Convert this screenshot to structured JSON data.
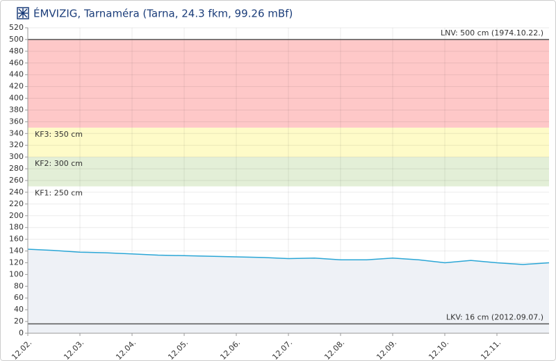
{
  "chart_data": {
    "type": "line",
    "title": "ÉMVIZIG, Tarnaméra (Tarna, 24.3 fkm, 99.26 mBf)",
    "categories": [
      "12.02.",
      null,
      "12.03.",
      null,
      "12.04.",
      null,
      "12.05.",
      null,
      "12.06.",
      null,
      "12.07.",
      null,
      "12.08.",
      null,
      "12.09.",
      null,
      "12.10.",
      null,
      "12.11.",
      null,
      null
    ],
    "series": [
      {
        "color": "#2aa6d6",
        "values": [
          143,
          141,
          138,
          137,
          135,
          133,
          132,
          131,
          130,
          129,
          127,
          128,
          125,
          125,
          128,
          125,
          120,
          124,
          120,
          117,
          120
        ]
      }
    ],
    "area_color": "#eef1f6",
    "ylim": [
      0,
      520
    ],
    "yticks": [
      0,
      20,
      40,
      60,
      80,
      100,
      120,
      140,
      160,
      180,
      200,
      220,
      240,
      260,
      280,
      300,
      320,
      340,
      360,
      380,
      400,
      420,
      440,
      460,
      480,
      500,
      520
    ],
    "grid": true,
    "bands": [
      {
        "value": 250,
        "label": "KF1: 250 cm",
        "color": "#e3efd7"
      },
      {
        "value": 300,
        "label": "KF2: 300 cm",
        "color": "#fefbc8"
      },
      {
        "value": 350,
        "label": "KF3: 350 cm",
        "color": "#fec8c8"
      }
    ],
    "reference_lines": [
      {
        "value": 500,
        "label": "LNV: 500 cm (1974.10.22.)"
      },
      {
        "value": 16,
        "label": "LKV: 16 cm (2012.09.07.)"
      }
    ]
  }
}
